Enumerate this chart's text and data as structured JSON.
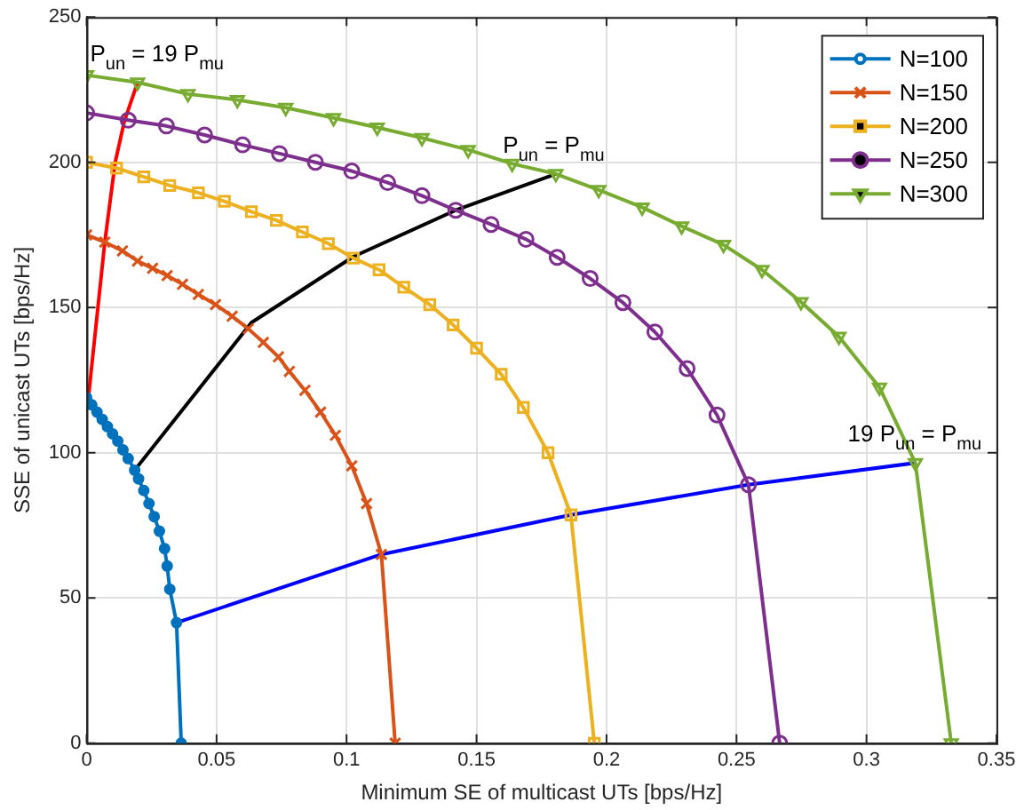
{
  "chart_data": {
    "type": "line",
    "xlabel": "Minimum SE of multicast UTs [bps/Hz]",
    "ylabel": "SSE of unicast UTs [bps/Hz]",
    "xlim": [
      0,
      0.35
    ],
    "ylim": [
      0,
      250
    ],
    "xticks": [
      0,
      0.05,
      0.1,
      0.15,
      0.2,
      0.25,
      0.3,
      0.35
    ],
    "yticks": [
      0,
      50,
      100,
      150,
      200,
      250
    ],
    "grid": true,
    "legend": "top right",
    "series": [
      {
        "name": "N=100",
        "color": "#0072bd",
        "marker": "circle",
        "x": [
          0,
          0.002,
          0.004,
          0.006,
          0.008,
          0.01,
          0.012,
          0.014,
          0.016,
          0.0185,
          0.02,
          0.022,
          0.024,
          0.026,
          0.028,
          0.03,
          0.031,
          0.032,
          0.0346,
          0.0364
        ],
        "values": [
          119,
          116.5,
          114,
          111.5,
          109,
          106.5,
          104,
          101,
          98,
          94,
          91,
          87,
          82.5,
          78,
          73,
          67,
          61,
          53,
          41.5,
          0
        ]
      },
      {
        "name": "N=150",
        "color": "#d95319",
        "marker": "cross",
        "x": [
          0,
          0.007,
          0.0138,
          0.0196,
          0.0254,
          0.031,
          0.0369,
          0.043,
          0.0496,
          0.056,
          0.0622,
          0.068,
          0.0738,
          0.078,
          0.084,
          0.09,
          0.0957,
          0.102,
          0.1077,
          0.1134,
          0.1187
        ],
        "values": [
          175,
          172.5,
          169.5,
          166,
          163.5,
          161,
          158,
          154.5,
          151,
          147,
          142.7,
          138,
          133,
          128,
          121.5,
          114,
          106,
          95.5,
          82.5,
          65,
          0
        ]
      },
      {
        "name": "N=200",
        "color": "#edb120",
        "marker": "square",
        "x": [
          0,
          0.0115,
          0.022,
          0.032,
          0.043,
          0.053,
          0.0634,
          0.073,
          0.083,
          0.093,
          0.1026,
          0.1125,
          0.122,
          0.132,
          0.141,
          0.15,
          0.1595,
          0.168,
          0.1775,
          0.1863,
          0.1953
        ],
        "values": [
          200,
          198,
          195,
          192,
          189.5,
          186.6,
          183,
          180,
          176,
          172,
          167,
          163,
          157,
          151,
          144,
          136,
          127,
          115.6,
          100,
          78.6,
          0
        ]
      },
      {
        "name": "N=250",
        "color": "#7e2f8e",
        "marker": "circle",
        "x": [
          0,
          0.016,
          0.0307,
          0.0454,
          0.06,
          0.0742,
          0.088,
          0.102,
          0.1158,
          0.129,
          0.142,
          0.1556,
          0.169,
          0.181,
          0.1937,
          0.2063,
          0.2186,
          0.231,
          0.2425,
          0.2546,
          0.2666
        ],
        "values": [
          217,
          214.5,
          212.5,
          209.4,
          206,
          203,
          200,
          197,
          193,
          188.5,
          183.5,
          178.6,
          173.5,
          167.3,
          160,
          151.7,
          141.6,
          129,
          113,
          89,
          0
        ]
      },
      {
        "name": "N=300",
        "color": "#77ac30",
        "marker": "triangle",
        "x": [
          0,
          0.0196,
          0.039,
          0.058,
          0.0766,
          0.095,
          0.1118,
          0.129,
          0.1468,
          0.1637,
          0.1805,
          0.197,
          0.2137,
          0.2289,
          0.245,
          0.2598,
          0.2748,
          0.2894,
          0.305,
          0.3188,
          0.3326
        ],
        "values": [
          230,
          227.5,
          223.5,
          221.5,
          218.8,
          215.3,
          212,
          208.4,
          204.3,
          199.5,
          196,
          190.5,
          184.5,
          178,
          171.6,
          163,
          151.9,
          140,
          122.5,
          96.5,
          0
        ]
      },
      {
        "color": "#ff0000",
        "marker": "none",
        "x": [
          0.0007,
          0.007,
          0.011,
          0.0145,
          0.0196
        ],
        "values": [
          119,
          172.5,
          200,
          214,
          227.5
        ]
      },
      {
        "color": "#000000",
        "marker": "none",
        "x": [
          0.0185,
          0.0634,
          0.1026,
          0.142,
          0.1805
        ],
        "values": [
          94,
          144.8,
          167.5,
          183.5,
          196
        ]
      },
      {
        "color": "#0000ff",
        "marker": "none",
        "x": [
          0.0346,
          0.1134,
          0.1863,
          0.2546,
          0.3188
        ],
        "values": [
          41.5,
          65,
          78.6,
          89,
          96.5
        ]
      }
    ],
    "annotations": [
      {
        "text": "P$_{un}$ = 19 P$_{mu}$",
        "x": 0.0196,
        "y": 227.5
      },
      {
        "text": "P$_{un}$ = P$_{mu}$",
        "x": 0.1805,
        "y": 196
      },
      {
        "text": "19 P$_{un}$ = P$_{mu}$",
        "x": 0.3188,
        "y": 96.5
      }
    ]
  }
}
